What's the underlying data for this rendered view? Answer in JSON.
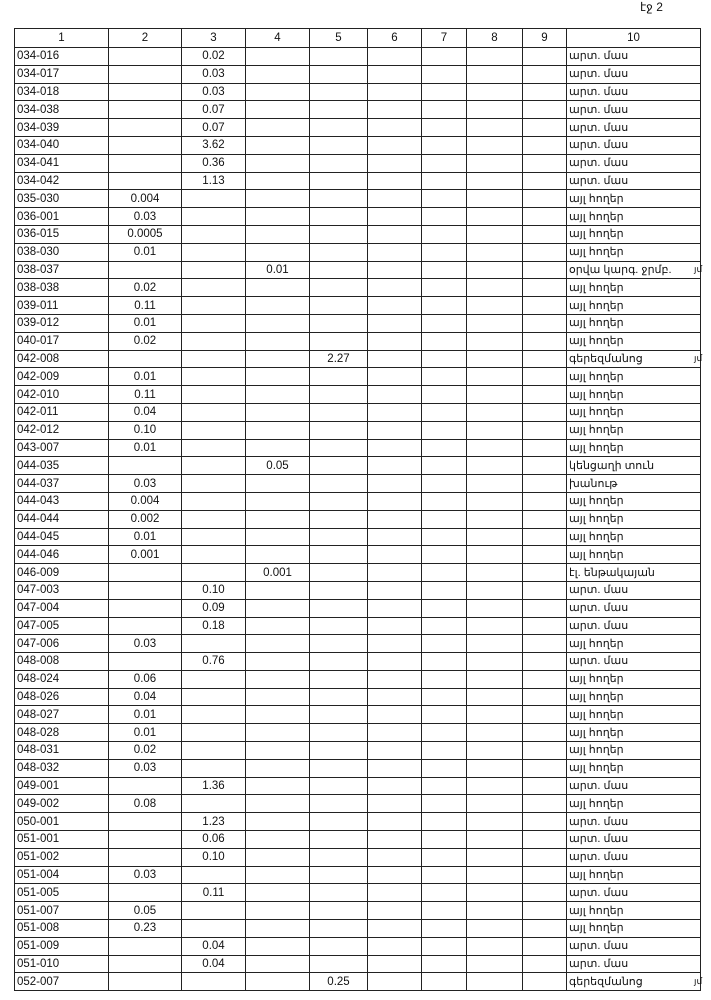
{
  "page_label": "էջ 2",
  "headers": [
    "1",
    "2",
    "3",
    "4",
    "5",
    "6",
    "7",
    "8",
    "9",
    "10"
  ],
  "rows": [
    [
      "034-016",
      "",
      "0.02",
      "",
      "",
      "արտ. մաս",
      ""
    ],
    [
      "034-017",
      "",
      "0.03",
      "",
      "",
      "արտ. մաս",
      ""
    ],
    [
      "034-018",
      "",
      "0.03",
      "",
      "",
      "արտ. մաս",
      ""
    ],
    [
      "034-038",
      "",
      "0.07",
      "",
      "",
      "արտ. մաս",
      ""
    ],
    [
      "034-039",
      "",
      "0.07",
      "",
      "",
      "արտ. մաս",
      ""
    ],
    [
      "034-040",
      "",
      "3.62",
      "",
      "",
      "արտ. մաս",
      ""
    ],
    [
      "034-041",
      "",
      "0.36",
      "",
      "",
      "արտ. մաս",
      ""
    ],
    [
      "034-042",
      "",
      "1.13",
      "",
      "",
      "արտ. մաս",
      ""
    ],
    [
      "035-030",
      "0.004",
      "",
      "",
      "",
      "այլ հողեր",
      ""
    ],
    [
      "036-001",
      "0.03",
      "",
      "",
      "",
      "այլ հողեր",
      ""
    ],
    [
      "036-015",
      "0.0005",
      "",
      "",
      "",
      "այլ հողեր",
      ""
    ],
    [
      "038-030",
      "0.01",
      "",
      "",
      "",
      "այլ հողեր",
      ""
    ],
    [
      "038-037",
      "",
      "",
      "0.01",
      "",
      "օրվա կարգ. ջրմբ.",
      "յմ"
    ],
    [
      "038-038",
      "0.02",
      "",
      "",
      "",
      "այլ հողեր",
      ""
    ],
    [
      "039-011",
      "0.11",
      "",
      "",
      "",
      "այլ հողեր",
      ""
    ],
    [
      "039-012",
      "0.01",
      "",
      "",
      "",
      "այլ հողեր",
      ""
    ],
    [
      "040-017",
      "0.02",
      "",
      "",
      "",
      "այլ հողեր",
      ""
    ],
    [
      "042-008",
      "",
      "",
      "",
      "2.27",
      "գերեզմանոց",
      "յմ"
    ],
    [
      "042-009",
      "0.01",
      "",
      "",
      "",
      "այլ հողեր",
      ""
    ],
    [
      "042-010",
      "0.11",
      "",
      "",
      "",
      "այլ հողեր",
      ""
    ],
    [
      "042-011",
      "0.04",
      "",
      "",
      "",
      "այլ հողեր",
      ""
    ],
    [
      "042-012",
      "0.10",
      "",
      "",
      "",
      "այլ հողեր",
      ""
    ],
    [
      "043-007",
      "0.01",
      "",
      "",
      "",
      "այլ հողեր",
      ""
    ],
    [
      "044-035",
      "",
      "",
      "0.05",
      "",
      "կենցաղի տուն",
      ""
    ],
    [
      "044-037",
      "0.03",
      "",
      "",
      "",
      "խանութ",
      ""
    ],
    [
      "044-043",
      "0.004",
      "",
      "",
      "",
      "այլ հողեր",
      ""
    ],
    [
      "044-044",
      "0.002",
      "",
      "",
      "",
      "այլ հողեր",
      ""
    ],
    [
      "044-045",
      "0.01",
      "",
      "",
      "",
      "այլ հողեր",
      ""
    ],
    [
      "044-046",
      "0.001",
      "",
      "",
      "",
      "այլ հողեր",
      ""
    ],
    [
      "046-009",
      "",
      "",
      "0.001",
      "",
      "էլ. ենթակայան",
      ""
    ],
    [
      "047-003",
      "",
      "0.10",
      "",
      "",
      "արտ. մաս",
      ""
    ],
    [
      "047-004",
      "",
      "0.09",
      "",
      "",
      "արտ. մաս",
      ""
    ],
    [
      "047-005",
      "",
      "0.18",
      "",
      "",
      "արտ. մաս",
      ""
    ],
    [
      "047-006",
      "0.03",
      "",
      "",
      "",
      "այլ հողեր",
      ""
    ],
    [
      "048-008",
      "",
      "0.76",
      "",
      "",
      "արտ. մաս",
      ""
    ],
    [
      "048-024",
      "0.06",
      "",
      "",
      "",
      "այլ հողեր",
      ""
    ],
    [
      "048-026",
      "0.04",
      "",
      "",
      "",
      "այլ հողեր",
      ""
    ],
    [
      "048-027",
      "0.01",
      "",
      "",
      "",
      "այլ հողեր",
      ""
    ],
    [
      "048-028",
      "0.01",
      "",
      "",
      "",
      "այլ հողեր",
      ""
    ],
    [
      "048-031",
      "0.02",
      "",
      "",
      "",
      "այլ հողեր",
      ""
    ],
    [
      "048-032",
      "0.03",
      "",
      "",
      "",
      "այլ հողեր",
      ""
    ],
    [
      "049-001",
      "",
      "1.36",
      "",
      "",
      "արտ. մաս",
      ""
    ],
    [
      "049-002",
      "0.08",
      "",
      "",
      "",
      "այլ հողեր",
      ""
    ],
    [
      "050-001",
      "",
      "1.23",
      "",
      "",
      "արտ. մաս",
      ""
    ],
    [
      "051-001",
      "",
      "0.06",
      "",
      "",
      "արտ. մաս",
      ""
    ],
    [
      "051-002",
      "",
      "0.10",
      "",
      "",
      "արտ. մաս",
      ""
    ],
    [
      "051-004",
      "0.03",
      "",
      "",
      "",
      "այլ հողեր",
      ""
    ],
    [
      "051-005",
      "",
      "0.11",
      "",
      "",
      "արտ. մաս",
      ""
    ],
    [
      "051-007",
      "0.05",
      "",
      "",
      "",
      "այլ հողեր",
      ""
    ],
    [
      "051-008",
      "0.23",
      "",
      "",
      "",
      "այլ հողեր",
      ""
    ],
    [
      "051-009",
      "",
      "0.04",
      "",
      "",
      "արտ. մաս",
      ""
    ],
    [
      "051-010",
      "",
      "0.04",
      "",
      "",
      "արտ. մաս",
      ""
    ],
    [
      "052-007",
      "",
      "",
      "",
      "0.25",
      "գերեզմանոց",
      "յմ"
    ]
  ]
}
